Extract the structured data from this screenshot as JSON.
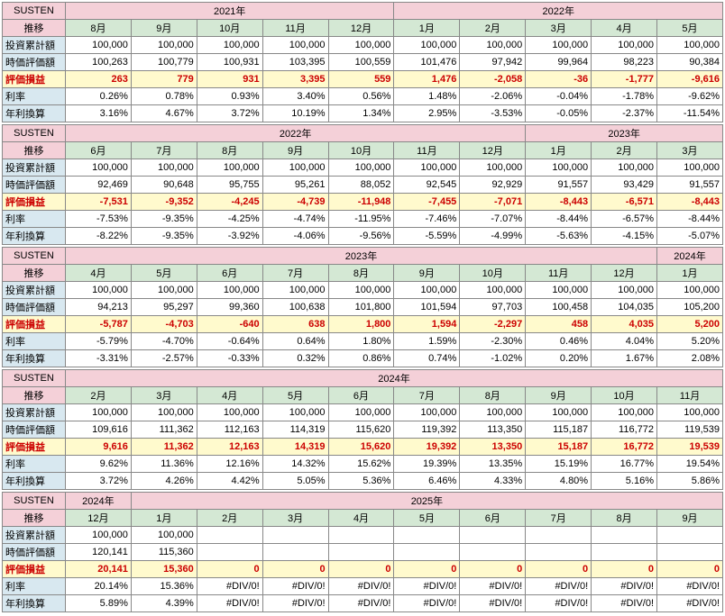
{
  "labels": {
    "title": "SUSTEN",
    "sub": "推移",
    "rows": [
      "投資累計額",
      "時価評価額",
      "評価損益",
      "利率",
      "年利換算"
    ]
  },
  "blocks": [
    {
      "years": [
        {
          "label": "2021年",
          "span": 5
        },
        {
          "label": "2022年",
          "span": 5
        }
      ],
      "months": [
        "8月",
        "9月",
        "10月",
        "11月",
        "12月",
        "1月",
        "2月",
        "3月",
        "4月",
        "5月"
      ],
      "invest": [
        "100,000",
        "100,000",
        "100,000",
        "100,000",
        "100,000",
        "100,000",
        "100,000",
        "100,000",
        "100,000",
        "100,000"
      ],
      "market": [
        "100,263",
        "100,779",
        "100,931",
        "103,395",
        "100,559",
        "101,476",
        "97,942",
        "99,964",
        "98,223",
        "90,384"
      ],
      "pl": [
        "263",
        "779",
        "931",
        "3,395",
        "559",
        "1,476",
        "-2,058",
        "-36",
        "-1,777",
        "-9,616"
      ],
      "plneg": [
        false,
        false,
        false,
        false,
        false,
        false,
        true,
        true,
        true,
        true
      ],
      "rate": [
        "0.26%",
        "0.78%",
        "0.93%",
        "3.40%",
        "0.56%",
        "1.48%",
        "-2.06%",
        "-0.04%",
        "-1.78%",
        "-9.62%"
      ],
      "annual": [
        "3.16%",
        "4.67%",
        "3.72%",
        "10.19%",
        "1.34%",
        "2.95%",
        "-3.53%",
        "-0.05%",
        "-2.37%",
        "-11.54%"
      ]
    },
    {
      "years": [
        {
          "label": "2022年",
          "span": 7
        },
        {
          "label": "2023年",
          "span": 3
        }
      ],
      "months": [
        "6月",
        "7月",
        "8月",
        "9月",
        "10月",
        "11月",
        "12月",
        "1月",
        "2月",
        "3月"
      ],
      "invest": [
        "100,000",
        "100,000",
        "100,000",
        "100,000",
        "100,000",
        "100,000",
        "100,000",
        "100,000",
        "100,000",
        "100,000"
      ],
      "market": [
        "92,469",
        "90,648",
        "95,755",
        "95,261",
        "88,052",
        "92,545",
        "92,929",
        "91,557",
        "93,429",
        "91,557"
      ],
      "pl": [
        "-7,531",
        "-9,352",
        "-4,245",
        "-4,739",
        "-11,948",
        "-7,455",
        "-7,071",
        "-8,443",
        "-6,571",
        "-8,443"
      ],
      "plneg": [
        true,
        true,
        true,
        true,
        true,
        true,
        true,
        true,
        true,
        true
      ],
      "rate": [
        "-7.53%",
        "-9.35%",
        "-4.25%",
        "-4.74%",
        "-11.95%",
        "-7.46%",
        "-7.07%",
        "-8.44%",
        "-6.57%",
        "-8.44%"
      ],
      "annual": [
        "-8.22%",
        "-9.35%",
        "-3.92%",
        "-4.06%",
        "-9.56%",
        "-5.59%",
        "-4.99%",
        "-5.63%",
        "-4.15%",
        "-5.07%"
      ]
    },
    {
      "years": [
        {
          "label": "2023年",
          "span": 9
        },
        {
          "label": "2024年",
          "span": 1
        }
      ],
      "months": [
        "4月",
        "5月",
        "6月",
        "7月",
        "8月",
        "9月",
        "10月",
        "11月",
        "12月",
        "1月"
      ],
      "invest": [
        "100,000",
        "100,000",
        "100,000",
        "100,000",
        "100,000",
        "100,000",
        "100,000",
        "100,000",
        "100,000",
        "100,000"
      ],
      "market": [
        "94,213",
        "95,297",
        "99,360",
        "100,638",
        "101,800",
        "101,594",
        "97,703",
        "100,458",
        "104,035",
        "105,200"
      ],
      "pl": [
        "-5,787",
        "-4,703",
        "-640",
        "638",
        "1,800",
        "1,594",
        "-2,297",
        "458",
        "4,035",
        "5,200"
      ],
      "plneg": [
        true,
        true,
        true,
        false,
        false,
        false,
        true,
        false,
        false,
        false
      ],
      "rate": [
        "-5.79%",
        "-4.70%",
        "-0.64%",
        "0.64%",
        "1.80%",
        "1.59%",
        "-2.30%",
        "0.46%",
        "4.04%",
        "5.20%"
      ],
      "annual": [
        "-3.31%",
        "-2.57%",
        "-0.33%",
        "0.32%",
        "0.86%",
        "0.74%",
        "-1.02%",
        "0.20%",
        "1.67%",
        "2.08%"
      ]
    },
    {
      "years": [
        {
          "label": "2024年",
          "span": 10
        }
      ],
      "months": [
        "2月",
        "3月",
        "4月",
        "5月",
        "6月",
        "7月",
        "8月",
        "9月",
        "10月",
        "11月"
      ],
      "invest": [
        "100,000",
        "100,000",
        "100,000",
        "100,000",
        "100,000",
        "100,000",
        "100,000",
        "100,000",
        "100,000",
        "100,000"
      ],
      "market": [
        "109,616",
        "111,362",
        "112,163",
        "114,319",
        "115,620",
        "119,392",
        "113,350",
        "115,187",
        "116,772",
        "119,539"
      ],
      "pl": [
        "9,616",
        "11,362",
        "12,163",
        "14,319",
        "15,620",
        "19,392",
        "13,350",
        "15,187",
        "16,772",
        "19,539"
      ],
      "plneg": [
        false,
        false,
        false,
        false,
        false,
        false,
        false,
        false,
        false,
        false
      ],
      "rate": [
        "9.62%",
        "11.36%",
        "12.16%",
        "14.32%",
        "15.62%",
        "19.39%",
        "13.35%",
        "15.19%",
        "16.77%",
        "19.54%"
      ],
      "annual": [
        "3.72%",
        "4.26%",
        "4.42%",
        "5.05%",
        "5.36%",
        "6.46%",
        "4.33%",
        "4.80%",
        "5.16%",
        "5.86%"
      ]
    },
    {
      "years": [
        {
          "label": "2024年",
          "span": 1
        },
        {
          "label": "2025年",
          "span": 9
        }
      ],
      "months": [
        "12月",
        "1月",
        "2月",
        "3月",
        "4月",
        "5月",
        "6月",
        "7月",
        "8月",
        "9月"
      ],
      "invest": [
        "100,000",
        "100,000",
        "",
        "",
        "",
        "",
        "",
        "",
        "",
        ""
      ],
      "market": [
        "120,141",
        "115,360",
        "",
        "",
        "",
        "",
        "",
        "",
        "",
        ""
      ],
      "pl": [
        "20,141",
        "15,360",
        "0",
        "0",
        "0",
        "0",
        "0",
        "0",
        "0",
        "0"
      ],
      "plneg": [
        false,
        false,
        false,
        false,
        false,
        false,
        false,
        false,
        false,
        false
      ],
      "rate": [
        "20.14%",
        "15.36%",
        "#DIV/0!",
        "#DIV/0!",
        "#DIV/0!",
        "#DIV/0!",
        "#DIV/0!",
        "#DIV/0!",
        "#DIV/0!",
        "#DIV/0!"
      ],
      "annual": [
        "5.89%",
        "4.39%",
        "#DIV/0!",
        "#DIV/0!",
        "#DIV/0!",
        "#DIV/0!",
        "#DIV/0!",
        "#DIV/0!",
        "#DIV/0!",
        "#DIV/0!"
      ]
    }
  ],
  "colwidths": {
    "label": 70,
    "data": 73
  }
}
